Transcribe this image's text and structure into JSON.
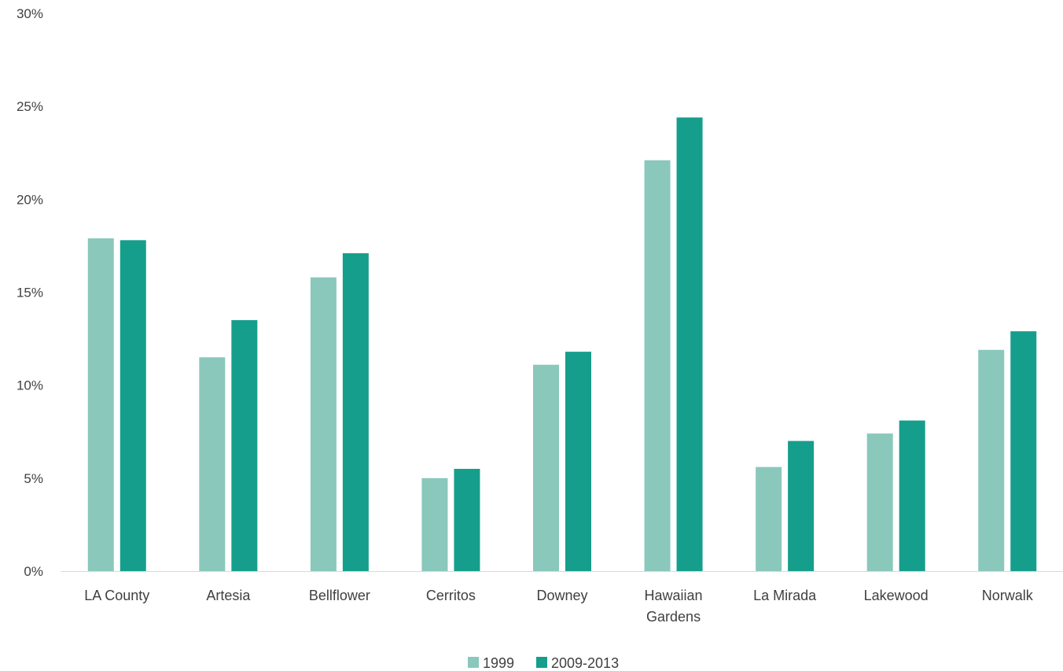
{
  "chart_data": {
    "type": "bar",
    "title": "",
    "xlabel": "",
    "ylabel": "",
    "ylim": [
      0,
      30
    ],
    "y_ticks": [
      "0%",
      "5%",
      "10%",
      "15%",
      "20%",
      "25%",
      "30%"
    ],
    "y_tick_values": [
      0,
      5,
      10,
      15,
      20,
      25,
      30
    ],
    "grid": false,
    "legend_position": "bottom",
    "categories": [
      [
        "LA County"
      ],
      [
        "Artesia"
      ],
      [
        "Bellflower"
      ],
      [
        "Cerritos"
      ],
      [
        "Downey"
      ],
      [
        "Hawaiian",
        "Gardens"
      ],
      [
        "La Mirada"
      ],
      [
        "Lakewood"
      ],
      [
        "Norwalk"
      ]
    ],
    "series": [
      {
        "name": "1999",
        "color": "#8AC8BC",
        "values": [
          17.9,
          11.5,
          15.8,
          5.0,
          11.1,
          22.1,
          5.6,
          7.4,
          11.9
        ]
      },
      {
        "name": "2009-2013",
        "color": "#169E8C",
        "values": [
          17.8,
          13.5,
          17.1,
          5.5,
          11.8,
          24.4,
          7.0,
          8.1,
          12.9
        ]
      }
    ]
  }
}
